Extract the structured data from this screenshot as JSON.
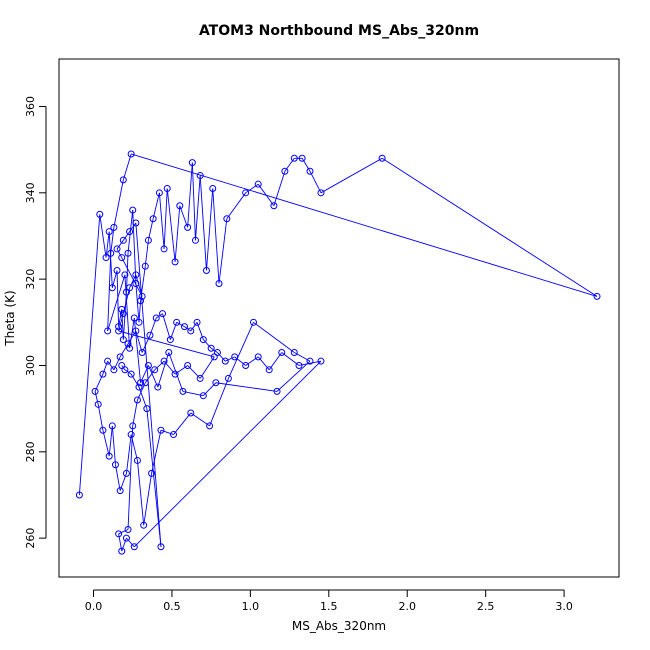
{
  "chart_data": {
    "type": "line",
    "title": "ATOM3 Northbound MS_Abs_320nm",
    "xlabel": "MS_Abs_320nm",
    "ylabel": "Theta (K)",
    "xlim": [
      -0.22,
      3.35
    ],
    "ylim": [
      251,
      371
    ],
    "xticks": [
      0.0,
      0.5,
      1.0,
      1.5,
      2.0,
      2.5,
      3.0
    ],
    "xtick_labels": [
      "0.0",
      "0.5",
      "1.0",
      "1.5",
      "2.0",
      "2.5",
      "3.0"
    ],
    "yticks": [
      260,
      280,
      300,
      320,
      340,
      360
    ],
    "ytick_labels": [
      "260",
      "280",
      "300",
      "320",
      "340",
      "360"
    ],
    "grid": false,
    "legend": "none",
    "line_color": "#0000ff",
    "marker": "open-circle",
    "series": [
      {
        "x": [
          -0.09,
          0.04,
          0.08,
          0.1,
          0.12,
          0.15,
          0.16,
          0.18,
          0.19,
          0.21,
          0.22,
          0.25,
          0.27,
          0.29,
          0.3,
          0.33,
          0.35,
          0.38,
          0.42,
          0.45,
          0.47,
          0.52,
          0.55,
          0.6,
          0.63,
          0.65,
          0.68,
          0.72,
          0.76,
          0.8,
          0.85,
          0.97,
          1.05,
          1.15,
          1.22,
          1.28,
          1.33,
          1.38,
          1.45,
          1.84,
          3.21,
          0.24,
          0.19,
          0.13,
          0.11,
          0.09,
          0.2,
          0.23,
          0.26,
          0.3,
          0.35,
          0.41,
          0.48,
          0.57,
          0.7,
          0.78,
          1.17,
          1.38,
          1.28,
          1.02,
          0.86,
          0.74,
          0.62,
          0.51,
          0.43,
          0.37,
          0.32,
          0.28,
          0.24,
          0.21,
          0.17,
          0.14,
          0.12,
          0.1,
          0.06,
          0.03,
          0.01,
          0.06,
          0.09,
          0.13,
          0.17,
          0.22,
          0.27,
          0.31,
          0.36,
          0.4,
          0.44,
          0.49,
          0.53,
          0.58,
          0.62,
          0.66,
          0.7,
          0.75,
          0.79,
          0.84,
          0.9,
          0.97,
          1.05,
          1.12,
          1.2,
          1.31,
          1.45,
          0.26,
          0.21,
          0.18,
          0.16,
          0.22,
          0.25,
          0.28,
          0.33,
          0.39,
          0.45,
          0.52,
          0.6,
          0.68,
          0.77,
          0.16,
          0.19,
          0.23,
          0.27,
          0.31,
          0.18,
          0.15,
          0.19,
          0.23,
          0.27,
          0.43,
          0.34,
          0.29,
          0.24,
          0.2,
          0.18
        ],
        "y": [
          270,
          335,
          325,
          331,
          318,
          322,
          309,
          313,
          306,
          317,
          326,
          336,
          319,
          310,
          315,
          323,
          329,
          334,
          340,
          327,
          341,
          324,
          337,
          332,
          347,
          329,
          344,
          322,
          341,
          319,
          334,
          340,
          342,
          337,
          345,
          348,
          348,
          345,
          340,
          348,
          316,
          349,
          343,
          332,
          326,
          308,
          321,
          304,
          311,
          296,
          300,
          295,
          303,
          294,
          293,
          296,
          294,
          301,
          303,
          310,
          297,
          286,
          289,
          284,
          285,
          275,
          263,
          278,
          284,
          275,
          271,
          277,
          286,
          279,
          285,
          291,
          294,
          298,
          301,
          299,
          302,
          305,
          308,
          303,
          307,
          311,
          312,
          306,
          310,
          309,
          308,
          310,
          306,
          304,
          303,
          301,
          302,
          300,
          302,
          299,
          303,
          300,
          301,
          258,
          260,
          257,
          261,
          262,
          286,
          292,
          296,
          299,
          301,
          298,
          300,
          297,
          302,
          308,
          312,
          318,
          321,
          316,
          325,
          327,
          329,
          331,
          333,
          258,
          290,
          295,
          298,
          299,
          300
        ]
      }
    ]
  }
}
